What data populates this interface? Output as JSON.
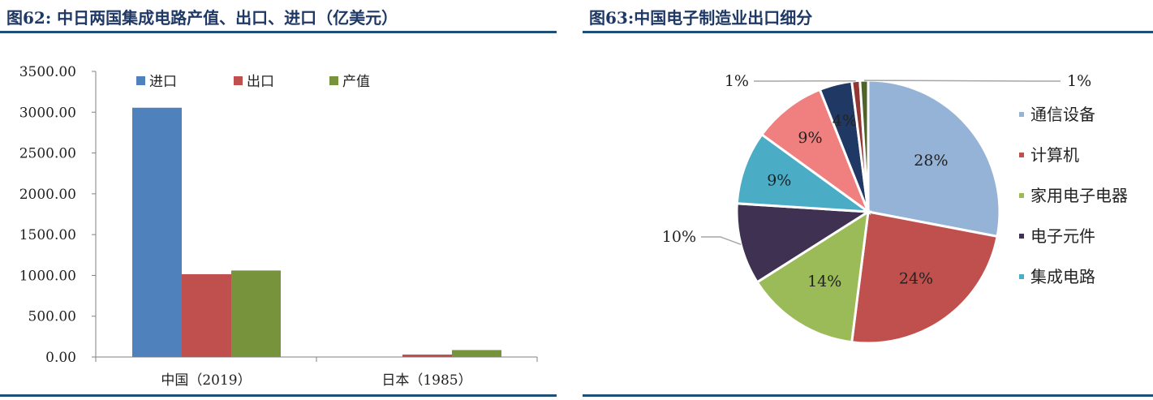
{
  "left": {
    "title": "图62: 中日两国集成电路产值、出口、进口（亿美元）",
    "chart_data": {
      "type": "bar",
      "categories": [
        "中国（2019）",
        "日本（1985）"
      ],
      "series": [
        {
          "name": "进口",
          "color": "#4f81bd",
          "values": [
            3055,
            0
          ]
        },
        {
          "name": "出口",
          "color": "#c0504d",
          "values": [
            1015,
            30
          ]
        },
        {
          "name": "产值",
          "color": "#77933c",
          "values": [
            1060,
            85
          ]
        }
      ],
      "ylim": [
        0,
        3500
      ],
      "yticks": [
        "0.00",
        "500.00",
        "1000.00",
        "1500.00",
        "2000.00",
        "2500.00",
        "3000.00",
        "3500.00"
      ],
      "grid": false,
      "legend": "top"
    }
  },
  "right": {
    "title": "图63:中国电子制造业出口细分",
    "chart_data": {
      "type": "pie",
      "slices": [
        {
          "name": "通信设备",
          "value": 28,
          "label": "28%",
          "color": "#95b3d7"
        },
        {
          "name": "计算机",
          "value": 24,
          "label": "24%",
          "color": "#c0504d"
        },
        {
          "name": "家用电子电器",
          "value": 14,
          "label": "14%",
          "color": "#9bbb59"
        },
        {
          "name": "电子元件",
          "value": 10,
          "label": "10%",
          "color": "#3f3151"
        },
        {
          "name": "集成电路",
          "value": 9,
          "label": "9%",
          "color": "#4bacc6"
        },
        {
          "name": "",
          "value": 9,
          "label": "9%",
          "color": "#f08080"
        },
        {
          "name": "",
          "value": 4,
          "label": "4%",
          "color": "#1f3864"
        },
        {
          "name": "",
          "value": 1,
          "label": "1%",
          "color": "#943634"
        },
        {
          "name": "",
          "value": 1,
          "label": "1%",
          "color": "#4f6228"
        }
      ],
      "legend": "right"
    }
  }
}
